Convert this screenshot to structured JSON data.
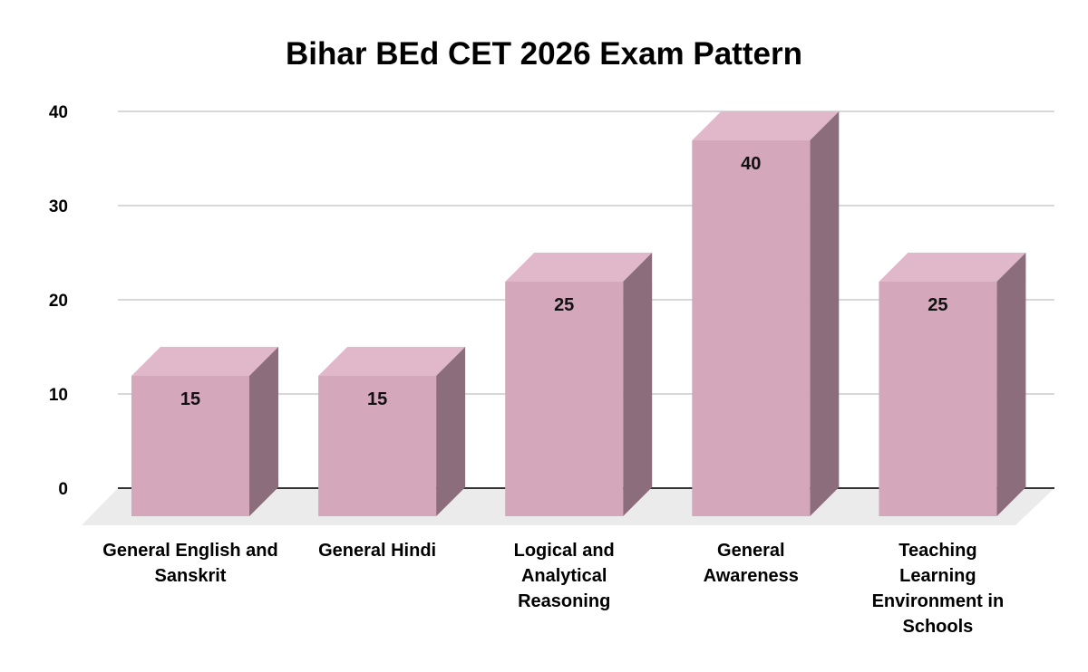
{
  "chart_data": {
    "type": "bar",
    "style": "3d",
    "title": "Bihar BEd CET 2026 Exam Pattern",
    "categories": [
      "General English and Sanskrit",
      "General Hindi",
      "Logical and Analytical Reasoning",
      "General Awareness",
      "Teaching Learning Environment in Schools"
    ],
    "values": [
      15,
      15,
      25,
      40,
      25
    ],
    "data_labels": [
      "15",
      "15",
      "25",
      "40",
      "25"
    ],
    "xlabel": "",
    "ylabel": "",
    "ylim": [
      0,
      40
    ],
    "yticks": [
      "0",
      "10",
      "20",
      "30",
      "40"
    ],
    "grid": true,
    "legend": "none",
    "colors": {
      "front": "#d4a7bb",
      "top": "#e0b8ca",
      "side": "#8c6d7b",
      "grid": "#cccccc",
      "floor": "#ebebeb"
    }
  }
}
